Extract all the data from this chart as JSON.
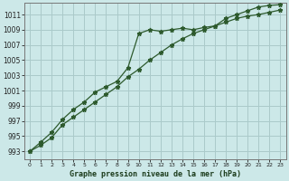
{
  "title": "Graphe pression niveau de la mer (hPa)",
  "background_color": "#cce8e8",
  "grid_color": "#aacaca",
  "line_color": "#2d5a2d",
  "xlim": [
    -0.5,
    23.5
  ],
  "ylim": [
    992.0,
    1012.5
  ],
  "xticks": [
    0,
    1,
    2,
    3,
    4,
    5,
    6,
    7,
    8,
    9,
    10,
    11,
    12,
    13,
    14,
    15,
    16,
    17,
    18,
    19,
    20,
    21,
    22,
    23
  ],
  "yticks": [
    993,
    995,
    997,
    999,
    1001,
    1003,
    1005,
    1007,
    1009,
    1011
  ],
  "series1_x": [
    0,
    1,
    2,
    3,
    4,
    5,
    6,
    7,
    8,
    9,
    10,
    11,
    12,
    13,
    14,
    15,
    16,
    17,
    18,
    19,
    20,
    21,
    22,
    23
  ],
  "series1_y": [
    993.0,
    994.2,
    995.5,
    997.2,
    998.5,
    999.5,
    1000.8,
    1001.5,
    1002.2,
    1004.0,
    1008.5,
    1009.0,
    1008.8,
    1009.0,
    1009.2,
    1009.0,
    1009.3,
    1009.5,
    1010.5,
    1011.0,
    1011.5,
    1012.0,
    1012.2,
    1012.3
  ],
  "series2_x": [
    0,
    1,
    2,
    3,
    4,
    5,
    6,
    7,
    8,
    9,
    10,
    11,
    12,
    13,
    14,
    15,
    16,
    17,
    18,
    19,
    20,
    21,
    22,
    23
  ],
  "series2_y": [
    993.0,
    993.8,
    994.8,
    996.5,
    997.5,
    998.5,
    999.5,
    1000.5,
    1001.5,
    1002.8,
    1003.8,
    1005.0,
    1006.0,
    1007.0,
    1007.8,
    1008.5,
    1009.0,
    1009.5,
    1010.0,
    1010.5,
    1010.8,
    1011.0,
    1011.3,
    1011.6
  ]
}
